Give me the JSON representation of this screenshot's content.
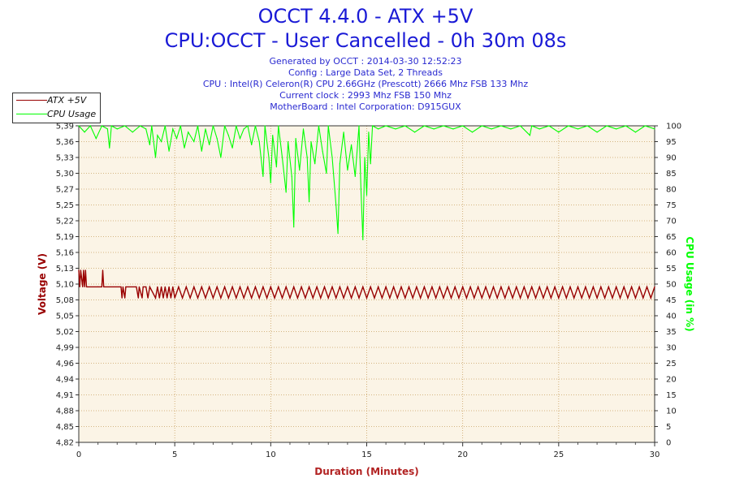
{
  "title_line1": "OCCT 4.4.0 - ATX +5V",
  "title_line2": "CPU:OCCT - User Cancelled - 0h 30m 08s",
  "info_lines": [
    "Generated by OCCT : 2014-03-30 12:52:23",
    "Config : Large Data Set, 2 Threads",
    "CPU : Intel(R) Celeron(R) CPU 2.66GHz (Prescott) 2666 Mhz FSB 133 Mhz",
    "Current clock : 2993 Mhz FSB 150 Mhz",
    "MotherBoard : Intel Corporation: D915GUX"
  ],
  "colors": {
    "voltage": "#990000",
    "cpu": "#00ff00",
    "plot_bg": "#fbf4e6",
    "grid": "#c8a060",
    "title": "#1a1ad6",
    "axis_label_x": "#b22222"
  },
  "chart_data": {
    "type": "line",
    "xlabel": "Duration (Minutes)",
    "ylabel_left": "Voltage (V)",
    "ylabel_right": "CPU Usage (in %)",
    "xlim": [
      0,
      30
    ],
    "x_ticks": [
      0,
      5,
      10,
      15,
      20,
      25,
      30
    ],
    "ylim_left": [
      4.82,
      5.39
    ],
    "y_left_ticks": [
      "4,82",
      "4,85",
      "4,88",
      "4,91",
      "4,94",
      "4,96",
      "4,99",
      "5,02",
      "5,05",
      "5,08",
      "5,10",
      "5,13",
      "5,16",
      "5,19",
      "5,22",
      "5,25",
      "5,27",
      "5,30",
      "5,33",
      "5,36",
      "5,39"
    ],
    "ylim_right": [
      0,
      100
    ],
    "y_right_ticks": [
      0,
      5,
      10,
      15,
      20,
      25,
      30,
      35,
      40,
      45,
      50,
      55,
      60,
      65,
      70,
      75,
      80,
      85,
      90,
      95,
      100
    ],
    "grid": true,
    "legend_position": "top-left, outside plot",
    "series": [
      {
        "name": "ATX +5V",
        "axis": "left",
        "points": [
          [
            0.0,
            5.13
          ],
          [
            0.05,
            5.1
          ],
          [
            0.1,
            5.13
          ],
          [
            0.2,
            5.1
          ],
          [
            0.25,
            5.13
          ],
          [
            0.3,
            5.1
          ],
          [
            0.35,
            5.13
          ],
          [
            0.4,
            5.1
          ],
          [
            1.0,
            5.1
          ],
          [
            1.2,
            5.1
          ],
          [
            1.25,
            5.13
          ],
          [
            1.3,
            5.1
          ],
          [
            2.2,
            5.1
          ],
          [
            2.25,
            5.08
          ],
          [
            2.3,
            5.1
          ],
          [
            2.4,
            5.08
          ],
          [
            2.45,
            5.1
          ],
          [
            3.0,
            5.1
          ],
          [
            3.1,
            5.08
          ],
          [
            3.15,
            5.1
          ],
          [
            3.3,
            5.08
          ],
          [
            3.35,
            5.1
          ],
          [
            3.5,
            5.1
          ],
          [
            3.6,
            5.08
          ],
          [
            3.7,
            5.1
          ],
          [
            4.0,
            5.08
          ],
          [
            4.1,
            5.1
          ],
          [
            4.2,
            5.08
          ],
          [
            4.3,
            5.1
          ],
          [
            4.4,
            5.08
          ],
          [
            4.5,
            5.1
          ],
          [
            4.6,
            5.08
          ],
          [
            4.7,
            5.1
          ],
          [
            4.8,
            5.08
          ],
          [
            4.9,
            5.1
          ],
          [
            5.0,
            5.08
          ],
          [
            5.2,
            5.1
          ],
          [
            5.4,
            5.08
          ],
          [
            5.6,
            5.1
          ],
          [
            5.8,
            5.08
          ],
          [
            6.0,
            5.1
          ],
          [
            6.2,
            5.08
          ],
          [
            6.4,
            5.1
          ],
          [
            6.6,
            5.08
          ],
          [
            6.8,
            5.1
          ],
          [
            7.0,
            5.08
          ],
          [
            7.2,
            5.1
          ],
          [
            7.4,
            5.08
          ],
          [
            7.6,
            5.1
          ],
          [
            7.8,
            5.08
          ],
          [
            8.0,
            5.1
          ],
          [
            8.2,
            5.08
          ],
          [
            8.4,
            5.1
          ],
          [
            8.6,
            5.08
          ],
          [
            8.8,
            5.1
          ],
          [
            9.0,
            5.08
          ],
          [
            9.2,
            5.1
          ],
          [
            9.4,
            5.08
          ],
          [
            9.6,
            5.1
          ],
          [
            9.8,
            5.08
          ],
          [
            10.0,
            5.1
          ],
          [
            10.2,
            5.08
          ],
          [
            10.4,
            5.1
          ],
          [
            10.6,
            5.08
          ],
          [
            10.8,
            5.1
          ],
          [
            11.0,
            5.08
          ],
          [
            11.2,
            5.1
          ],
          [
            11.4,
            5.08
          ],
          [
            11.6,
            5.1
          ],
          [
            11.8,
            5.08
          ],
          [
            12.0,
            5.1
          ],
          [
            12.2,
            5.08
          ],
          [
            12.4,
            5.1
          ],
          [
            12.6,
            5.08
          ],
          [
            12.8,
            5.1
          ],
          [
            13.0,
            5.08
          ],
          [
            13.2,
            5.1
          ],
          [
            13.4,
            5.08
          ],
          [
            13.6,
            5.1
          ],
          [
            13.8,
            5.08
          ],
          [
            14.0,
            5.1
          ],
          [
            14.2,
            5.08
          ],
          [
            14.4,
            5.1
          ],
          [
            14.6,
            5.08
          ],
          [
            14.8,
            5.1
          ],
          [
            15.0,
            5.08
          ],
          [
            15.2,
            5.1
          ],
          [
            15.4,
            5.08
          ],
          [
            15.6,
            5.1
          ],
          [
            15.8,
            5.08
          ],
          [
            16.0,
            5.1
          ],
          [
            16.2,
            5.08
          ],
          [
            16.4,
            5.1
          ],
          [
            16.6,
            5.08
          ],
          [
            16.8,
            5.1
          ],
          [
            17.0,
            5.08
          ],
          [
            17.2,
            5.1
          ],
          [
            17.4,
            5.08
          ],
          [
            17.6,
            5.1
          ],
          [
            17.8,
            5.08
          ],
          [
            18.0,
            5.1
          ],
          [
            18.2,
            5.08
          ],
          [
            18.4,
            5.1
          ],
          [
            18.6,
            5.08
          ],
          [
            18.8,
            5.1
          ],
          [
            19.0,
            5.08
          ],
          [
            19.2,
            5.1
          ],
          [
            19.4,
            5.08
          ],
          [
            19.6,
            5.1
          ],
          [
            19.8,
            5.08
          ],
          [
            20.0,
            5.1
          ],
          [
            20.2,
            5.08
          ],
          [
            20.4,
            5.1
          ],
          [
            20.6,
            5.08
          ],
          [
            20.8,
            5.1
          ],
          [
            21.0,
            5.08
          ],
          [
            21.2,
            5.1
          ],
          [
            21.4,
            5.08
          ],
          [
            21.6,
            5.1
          ],
          [
            21.8,
            5.08
          ],
          [
            22.0,
            5.1
          ],
          [
            22.2,
            5.08
          ],
          [
            22.4,
            5.1
          ],
          [
            22.6,
            5.08
          ],
          [
            22.8,
            5.1
          ],
          [
            23.0,
            5.08
          ],
          [
            23.2,
            5.1
          ],
          [
            23.4,
            5.08
          ],
          [
            23.6,
            5.1
          ],
          [
            23.8,
            5.08
          ],
          [
            24.0,
            5.1
          ],
          [
            24.2,
            5.08
          ],
          [
            24.4,
            5.1
          ],
          [
            24.6,
            5.08
          ],
          [
            24.8,
            5.1
          ],
          [
            25.0,
            5.08
          ],
          [
            25.2,
            5.1
          ],
          [
            25.4,
            5.08
          ],
          [
            25.6,
            5.1
          ],
          [
            25.8,
            5.08
          ],
          [
            26.0,
            5.1
          ],
          [
            26.2,
            5.08
          ],
          [
            26.4,
            5.1
          ],
          [
            26.6,
            5.08
          ],
          [
            26.8,
            5.1
          ],
          [
            27.0,
            5.08
          ],
          [
            27.2,
            5.1
          ],
          [
            27.4,
            5.08
          ],
          [
            27.6,
            5.1
          ],
          [
            27.8,
            5.08
          ],
          [
            28.0,
            5.1
          ],
          [
            28.2,
            5.08
          ],
          [
            28.4,
            5.1
          ],
          [
            28.6,
            5.08
          ],
          [
            28.8,
            5.1
          ],
          [
            29.0,
            5.08
          ],
          [
            29.2,
            5.1
          ],
          [
            29.4,
            5.08
          ],
          [
            29.6,
            5.1
          ],
          [
            29.8,
            5.08
          ],
          [
            30.0,
            5.1
          ]
        ]
      },
      {
        "name": "CPU Usage",
        "axis": "right",
        "points": [
          [
            0.0,
            100
          ],
          [
            0.3,
            98
          ],
          [
            0.6,
            100
          ],
          [
            0.9,
            96
          ],
          [
            1.2,
            100
          ],
          [
            1.5,
            99
          ],
          [
            1.6,
            93
          ],
          [
            1.7,
            100
          ],
          [
            2.0,
            99
          ],
          [
            2.4,
            100
          ],
          [
            2.8,
            98
          ],
          [
            3.2,
            100
          ],
          [
            3.5,
            99
          ],
          [
            3.7,
            94
          ],
          [
            3.8,
            100
          ],
          [
            4.0,
            90
          ],
          [
            4.1,
            97
          ],
          [
            4.3,
            95
          ],
          [
            4.5,
            100
          ],
          [
            4.7,
            92
          ],
          [
            4.9,
            99
          ],
          [
            5.1,
            96
          ],
          [
            5.3,
            100
          ],
          [
            5.5,
            93
          ],
          [
            5.7,
            98
          ],
          [
            6.0,
            95
          ],
          [
            6.2,
            100
          ],
          [
            6.4,
            92
          ],
          [
            6.6,
            99
          ],
          [
            6.8,
            94
          ],
          [
            7.0,
            100
          ],
          [
            7.2,
            96
          ],
          [
            7.4,
            90
          ],
          [
            7.6,
            100
          ],
          [
            7.8,
            97
          ],
          [
            8.0,
            93
          ],
          [
            8.2,
            100
          ],
          [
            8.4,
            96
          ],
          [
            8.6,
            99
          ],
          [
            8.8,
            100
          ],
          [
            9.0,
            94
          ],
          [
            9.2,
            100
          ],
          [
            9.4,
            95
          ],
          [
            9.6,
            84
          ],
          [
            9.7,
            100
          ],
          [
            9.9,
            90
          ],
          [
            10.0,
            82
          ],
          [
            10.1,
            97
          ],
          [
            10.3,
            87
          ],
          [
            10.4,
            100
          ],
          [
            10.6,
            90
          ],
          [
            10.8,
            79
          ],
          [
            10.9,
            95
          ],
          [
            11.1,
            84
          ],
          [
            11.2,
            68
          ],
          [
            11.3,
            96
          ],
          [
            11.5,
            86
          ],
          [
            11.7,
            99
          ],
          [
            11.9,
            90
          ],
          [
            12.0,
            76
          ],
          [
            12.1,
            95
          ],
          [
            12.3,
            88
          ],
          [
            12.5,
            100
          ],
          [
            12.7,
            92
          ],
          [
            12.9,
            85
          ],
          [
            13.0,
            100
          ],
          [
            13.2,
            90
          ],
          [
            13.4,
            75
          ],
          [
            13.5,
            66
          ],
          [
            13.6,
            88
          ],
          [
            13.8,
            98
          ],
          [
            14.0,
            86
          ],
          [
            14.2,
            94
          ],
          [
            14.4,
            84
          ],
          [
            14.6,
            100
          ],
          [
            14.7,
            80
          ],
          [
            14.8,
            64
          ],
          [
            14.9,
            90
          ],
          [
            15.0,
            78
          ],
          [
            15.1,
            98
          ],
          [
            15.2,
            88
          ],
          [
            15.3,
            100
          ],
          [
            15.6,
            99
          ],
          [
            16.0,
            100
          ],
          [
            16.5,
            99
          ],
          [
            17.0,
            100
          ],
          [
            17.5,
            98
          ],
          [
            18.0,
            100
          ],
          [
            18.5,
            99
          ],
          [
            19.0,
            100
          ],
          [
            19.5,
            99
          ],
          [
            20.0,
            100
          ],
          [
            20.5,
            98
          ],
          [
            21.0,
            100
          ],
          [
            21.5,
            99
          ],
          [
            22.0,
            100
          ],
          [
            22.5,
            99
          ],
          [
            23.0,
            100
          ],
          [
            23.5,
            97
          ],
          [
            23.6,
            100
          ],
          [
            24.0,
            99
          ],
          [
            24.5,
            100
          ],
          [
            25.0,
            98
          ],
          [
            25.5,
            100
          ],
          [
            26.0,
            99
          ],
          [
            26.5,
            100
          ],
          [
            27.0,
            98
          ],
          [
            27.5,
            100
          ],
          [
            28.0,
            99
          ],
          [
            28.5,
            100
          ],
          [
            29.0,
            98
          ],
          [
            29.5,
            100
          ],
          [
            30.0,
            99
          ]
        ]
      }
    ]
  }
}
